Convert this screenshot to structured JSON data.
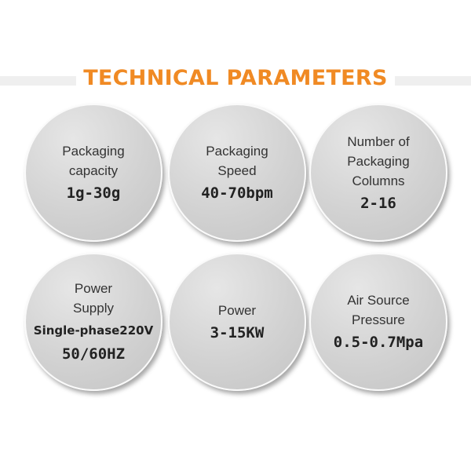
{
  "title": "TECHNICAL PARAMETERS",
  "params": [
    {
      "label": [
        "Packaging",
        "capacity"
      ],
      "value": [
        "1g-30g"
      ]
    },
    {
      "label": [
        "Packaging",
        "Speed"
      ],
      "value": [
        "40-70bpm"
      ]
    },
    {
      "label": [
        "Number of",
        "Packaging",
        "Columns"
      ],
      "value": [
        "2-16"
      ]
    },
    {
      "label": [
        "Power",
        "Supply"
      ],
      "value": [
        "Single-phase220V",
        "50/60HZ"
      ]
    },
    {
      "label": [
        "Power"
      ],
      "value": [
        "3-15KW"
      ]
    },
    {
      "label": [
        "Air Source",
        "Pressure"
      ],
      "value": [
        "0.5-0.7Mpa"
      ]
    }
  ],
  "colors": {
    "title": "#f08a24",
    "circle": "#d2d2d2"
  }
}
